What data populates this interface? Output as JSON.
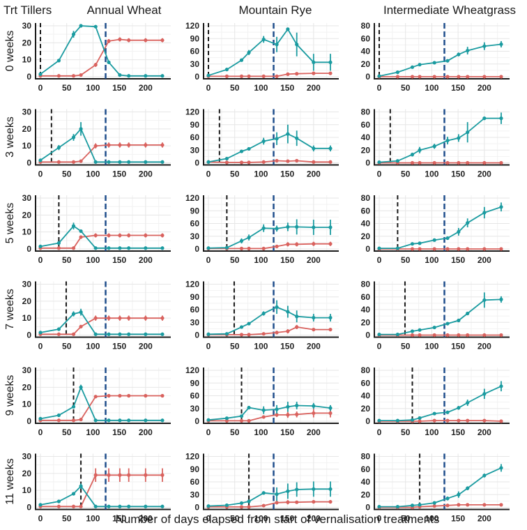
{
  "chart_data": {
    "type": "line",
    "corner_label": "Trt Tillers",
    "xlabel": "Number of days elapsed from start of vernalisation treatments",
    "x": [
      0,
      35,
      63,
      77,
      105,
      130,
      151,
      168,
      200,
      232
    ],
    "xlim": [
      0,
      240
    ],
    "xticks": [
      0,
      50,
      100,
      150,
      200
    ],
    "grid": true,
    "legend": "none",
    "series_colors": {
      "vegetative": "#1a9ba0",
      "reproductive": "#d9625e"
    },
    "reference_line_colors": {
      "treatment_end": "#1a1a1a",
      "common_line": "#1f4e8c"
    },
    "common_reference_day": 124,
    "columns": [
      {
        "title": "Annual Wheat",
        "ylim": [
          0,
          30
        ],
        "yticks": [
          0,
          10,
          20,
          30
        ]
      },
      {
        "title": "Mountain Rye",
        "ylim": [
          0,
          120
        ],
        "yticks": [
          0,
          30,
          60,
          90,
          120
        ]
      },
      {
        "title": "Intermediate Wheatgrass",
        "ylim": [
          0,
          80
        ],
        "yticks": [
          0,
          20,
          40,
          60,
          80
        ]
      }
    ],
    "rows": [
      {
        "label": "0 weeks",
        "treatment_end_day": 0,
        "panels": [
          {
            "vegetative": [
              1.5,
              9.5,
              25,
              30,
              29.5,
              8.5,
              1,
              0.5,
              0.5,
              0.5
            ],
            "vegetative_err": [
              0,
              0.6,
              2,
              0,
              0,
              1,
              0,
              0,
              0,
              0
            ],
            "reproductive": [
              0.5,
              0.5,
              0.5,
              1,
              7,
              21,
              22,
              21.5,
              21.5,
              21.5
            ],
            "reproductive_err": [
              0,
              0,
              0,
              0,
              1.2,
              1.2,
              1.2,
              1.2,
              1.2,
              1.2
            ]
          },
          {
            "vegetative": [
              3,
              17,
              39,
              57,
              88,
              76,
              112,
              76,
              34,
              34
            ],
            "vegetative_err": [
              0,
              0,
              2,
              6,
              8,
              18,
              3,
              28,
              20,
              20
            ],
            "reproductive": [
              1,
              1,
              1,
              1,
              1,
              1,
              6,
              7,
              8,
              8
            ],
            "reproductive_err": [
              0,
              0,
              0,
              0,
              0,
              0,
              2,
              3,
              3,
              3
            ]
          },
          {
            "vegetative": [
              1,
              7,
              15,
              19,
              22,
              25,
              35,
              41,
              48,
              51
            ],
            "vegetative_err": [
              0,
              0,
              0,
              0,
              0,
              2,
              3,
              6,
              6,
              5
            ],
            "reproductive": [
              0,
              0,
              0,
              0,
              0,
              0,
              0,
              0,
              0,
              0
            ],
            "reproductive_err": [
              0,
              0,
              0,
              0,
              0,
              0,
              0,
              0,
              0,
              0
            ]
          }
        ]
      },
      {
        "label": "3 weeks",
        "treatment_end_day": 21,
        "panels": [
          {
            "vegetative": [
              1.5,
              9,
              15,
              20,
              0.5,
              0.5,
              0.5,
              0.5,
              0.5,
              0.5
            ],
            "vegetative_err": [
              0,
              1.5,
              2,
              4,
              0,
              0,
              0,
              0,
              0,
              0
            ],
            "reproductive": [
              0.5,
              0.5,
              0.5,
              1,
              10,
              10.5,
              10.5,
              10.5,
              10.5,
              10.5
            ],
            "reproductive_err": [
              0,
              0,
              0,
              0,
              1.5,
              1.5,
              1.5,
              1.5,
              1.5,
              1.5
            ]
          },
          {
            "vegetative": [
              2,
              10,
              27,
              33,
              51,
              57,
              68,
              58,
              34,
              34
            ],
            "vegetative_err": [
              0,
              0,
              3,
              3,
              8,
              15,
              22,
              18,
              7,
              7
            ],
            "reproductive": [
              2,
              1,
              1,
              1,
              2,
              5,
              4,
              5,
              2,
              2
            ],
            "reproductive_err": [
              0,
              0,
              0,
              0,
              0,
              2,
              1,
              2,
              0,
              0
            ]
          },
          {
            "vegetative": [
              1,
              3,
              13,
              20,
              26,
              35,
              39,
              48,
              70,
              70
            ],
            "vegetative_err": [
              0,
              0,
              3,
              5,
              4,
              6,
              6,
              16,
              0,
              9
            ],
            "reproductive": [
              0,
              0,
              0,
              0,
              0,
              0,
              0,
              0,
              0,
              0
            ],
            "reproductive_err": [
              0,
              0,
              0,
              0,
              0,
              0,
              0,
              0,
              0,
              0
            ]
          }
        ]
      },
      {
        "label": "5 weeks",
        "treatment_end_day": 35,
        "panels": [
          {
            "vegetative": [
              1.5,
              3.5,
              13.5,
              10.5,
              0.5,
              0.5,
              0.5,
              0.5,
              0.5,
              0.5
            ],
            "vegetative_err": [
              0,
              0,
              2,
              0.8,
              0,
              0,
              0,
              0,
              0,
              0
            ],
            "reproductive": [
              0.5,
              0.5,
              0.5,
              7,
              8,
              8,
              8,
              8,
              8,
              8
            ],
            "reproductive_err": [
              0,
              0,
              0,
              0,
              1.2,
              1.2,
              1.2,
              1.2,
              1.2,
              1.2
            ]
          },
          {
            "vegetative": [
              2,
              3,
              19,
              27,
              49,
              48,
              52,
              52,
              51,
              51
            ],
            "vegetative_err": [
              0,
              0,
              6,
              7,
              9,
              7,
              10,
              18,
              18,
              18
            ],
            "reproductive": [
              1,
              1,
              1,
              1,
              1,
              6,
              11,
              11,
              12,
              12
            ],
            "reproductive_err": [
              0,
              0,
              0,
              0,
              0,
              3,
              5,
              5,
              5,
              5
            ]
          },
          {
            "vegetative": [
              1,
              1,
              8,
              9,
              14,
              17,
              27,
              41,
              57,
              66
            ],
            "vegetative_err": [
              0,
              0,
              0,
              0,
              0,
              0,
              6,
              7,
              9,
              7
            ],
            "reproductive": [
              0,
              0,
              0,
              0,
              0,
              0,
              0,
              0,
              0,
              0
            ],
            "reproductive_err": [
              0,
              0,
              0,
              0,
              0,
              0,
              0,
              0,
              0,
              0
            ]
          }
        ]
      },
      {
        "label": "7 weeks",
        "treatment_end_day": 49,
        "panels": [
          {
            "vegetative": [
              1.5,
              3.5,
              12.5,
              13.5,
              0.5,
              0.5,
              0.5,
              0.5,
              0.5,
              0.5
            ],
            "vegetative_err": [
              0,
              0,
              1.5,
              2,
              0,
              0,
              0,
              0,
              0,
              0
            ],
            "reproductive": [
              0.5,
              0.5,
              0.5,
              5,
              10,
              10,
              10,
              10,
              10,
              10
            ],
            "reproductive_err": [
              0,
              0,
              0,
              1,
              1.5,
              1.5,
              1.5,
              1.5,
              1.5,
              1.5
            ]
          },
          {
            "vegetative": [
              2,
              3,
              19,
              27,
              51,
              66,
              55,
              44,
              41,
              41
            ],
            "vegetative_err": [
              0,
              0,
              0,
              0,
              5,
              16,
              14,
              14,
              9,
              9
            ],
            "reproductive": [
              1,
              1,
              1,
              1,
              3,
              6,
              9,
              19,
              13,
              13
            ],
            "reproductive_err": [
              0,
              0,
              0,
              0,
              0,
              4,
              5,
              5,
              3,
              3
            ]
          },
          {
            "vegetative": [
              1,
              1,
              6,
              8,
              12,
              18,
              23,
              34,
              55,
              56
            ],
            "vegetative_err": [
              0,
              0,
              0,
              0,
              0,
              2,
              2,
              0,
              12,
              5
            ],
            "reproductive": [
              0,
              0,
              0,
              0,
              0,
              0,
              0,
              0,
              0,
              0
            ],
            "reproductive_err": [
              0,
              0,
              0,
              0,
              0,
              0,
              0,
              0,
              0,
              0
            ]
          }
        ]
      },
      {
        "label": "9 weeks",
        "treatment_end_day": 63,
        "panels": [
          {
            "vegetative": [
              1.5,
              3.5,
              8.5,
              20,
              0.5,
              0.5,
              0.5,
              0.5,
              0.5,
              0.5
            ],
            "vegetative_err": [
              0,
              0,
              0,
              1.5,
              0,
              0,
              0,
              0,
              0,
              0
            ],
            "reproductive": [
              0.5,
              0.5,
              0.5,
              1,
              14.5,
              15,
              15,
              15,
              15,
              15
            ],
            "reproductive_err": [
              0,
              0,
              0,
              0,
              0,
              0,
              0,
              0,
              0,
              0
            ]
          },
          {
            "vegetative": [
              3,
              7,
              12,
              32,
              26,
              28,
              34,
              37,
              36,
              31
            ],
            "vegetative_err": [
              0,
              0,
              0,
              4,
              9,
              10,
              12,
              9,
              7,
              7
            ],
            "reproductive": [
              1,
              1,
              1,
              1,
              10,
              15,
              15,
              16,
              19,
              19
            ],
            "reproductive_err": [
              0,
              0,
              0,
              0,
              3,
              5,
              7,
              7,
              10,
              10
            ]
          },
          {
            "vegetative": [
              1,
              1,
              2,
              5,
              12,
              14,
              21,
              29,
              43,
              55
            ],
            "vegetative_err": [
              0,
              0,
              0,
              0,
              2,
              2,
              3,
              5,
              8,
              8
            ],
            "reproductive": [
              0,
              0,
              0,
              0,
              1,
              1,
              1,
              1,
              1,
              0
            ],
            "reproductive_err": [
              0,
              0,
              0,
              0,
              0,
              0,
              0,
              0,
              0,
              0
            ]
          }
        ]
      },
      {
        "label": "11 weeks",
        "treatment_end_day": 77,
        "panels": [
          {
            "vegetative": [
              1.5,
              3.5,
              8,
              12.5,
              0.5,
              0.5,
              0.5,
              0.5,
              0.5,
              0.5
            ],
            "vegetative_err": [
              0,
              0,
              0,
              1.5,
              0,
              0,
              0,
              0,
              0,
              0
            ],
            "reproductive": [
              0.5,
              0.5,
              0.5,
              0.5,
              19,
              19,
              19,
              19,
              19,
              19
            ],
            "reproductive_err": [
              0,
              0,
              0,
              0,
              4,
              4,
              4,
              4,
              4,
              4
            ]
          },
          {
            "vegetative": [
              3,
              5,
              10,
              14,
              34,
              31,
              38,
              42,
              43,
              43
            ],
            "vegetative_err": [
              0,
              0,
              0,
              0,
              4,
              16,
              18,
              17,
              18,
              18
            ],
            "reproductive": [
              1,
              1,
              1,
              1,
              4,
              11,
              12,
              12,
              13,
              13
            ],
            "reproductive_err": [
              0,
              0,
              0,
              0,
              0,
              4,
              5,
              3,
              4,
              4
            ]
          },
          {
            "vegetative": [
              1,
              1,
              3,
              4,
              7,
              14,
              20,
              30,
              50,
              62
            ],
            "vegetative_err": [
              0,
              0,
              0,
              0,
              0,
              3,
              5,
              3,
              3,
              6
            ],
            "reproductive": [
              0,
              0,
              0,
              1,
              2,
              3,
              4,
              4,
              4,
              4
            ],
            "reproductive_err": [
              0,
              0,
              0,
              0,
              0,
              0,
              0,
              0,
              0,
              0
            ]
          }
        ]
      }
    ]
  }
}
